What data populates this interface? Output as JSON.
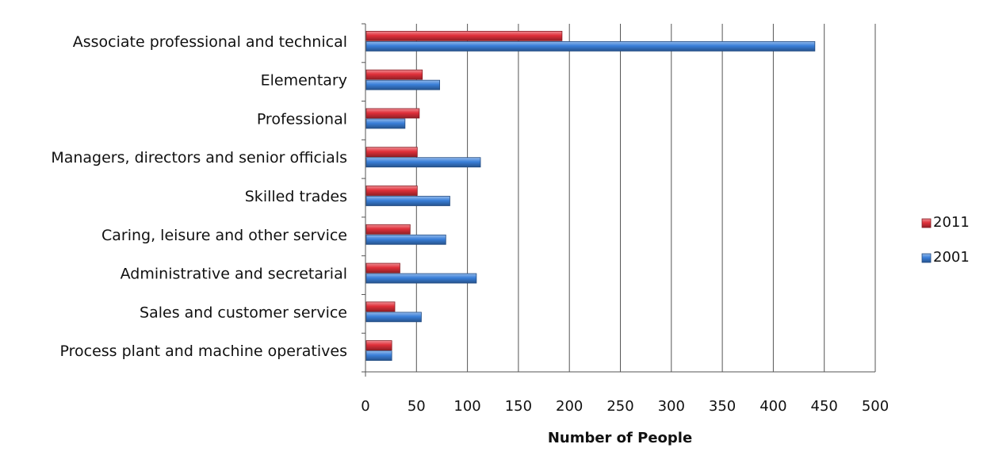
{
  "chart_data": {
    "type": "bar",
    "orientation": "horizontal",
    "categories": [
      "Associate professional and technical",
      "Elementary",
      "Professional",
      "Managers, directors and senior officials",
      "Skilled trades",
      "Caring, leisure and other service",
      "Administrative and secretarial",
      "Sales and customer service",
      "Process plant and machine operatives"
    ],
    "series": [
      {
        "name": "2011",
        "color": "#e0303a",
        "values": [
          192,
          55,
          52,
          50,
          50,
          43,
          33,
          28,
          25
        ]
      },
      {
        "name": "2001",
        "color": "#3a7fd9",
        "values": [
          440,
          72,
          38,
          112,
          82,
          78,
          108,
          54,
          25
        ]
      }
    ],
    "xlabel": "Number of People",
    "ylabel": "",
    "title": "",
    "xlim": [
      0,
      500
    ],
    "xticks": [
      0,
      50,
      100,
      150,
      200,
      250,
      300,
      350,
      400,
      450,
      500
    ],
    "grid": true,
    "legend_position": "right"
  }
}
